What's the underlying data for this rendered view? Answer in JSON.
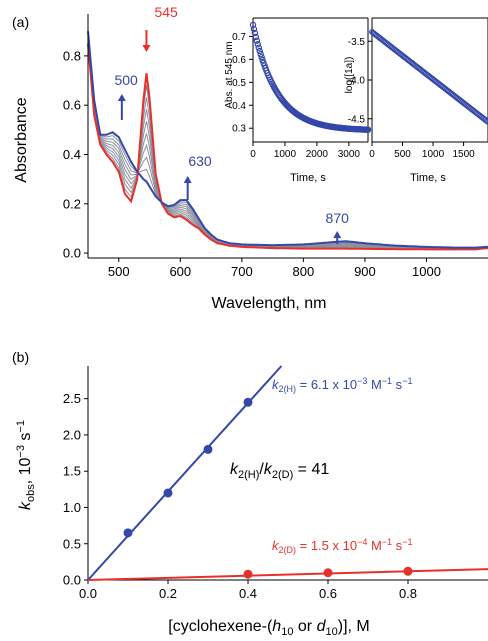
{
  "colors": {
    "blue": "#3547a8",
    "red": "#e8302a",
    "grey": "#8a8f9c",
    "axis": "#000000"
  },
  "chart_data": [
    {
      "panel_label": "(a)",
      "type": "line",
      "xlabel": "Wavelength, nm",
      "ylabel": "Absorbance",
      "xlim": [
        450,
        1100
      ],
      "ylim": [
        -0.02,
        0.97
      ],
      "x_ticks": [
        500,
        600,
        700,
        800,
        900,
        1000
      ],
      "y_ticks": [
        0.0,
        0.2,
        0.4,
        0.6,
        0.8
      ],
      "series": [
        {
          "role": "initial",
          "color": "red",
          "x": [
            450,
            460,
            470,
            480,
            490,
            500,
            510,
            520,
            530,
            540,
            545,
            550,
            560,
            570,
            580,
            590,
            600,
            610,
            620,
            630,
            640,
            650,
            660,
            680,
            700,
            750,
            800,
            850,
            870,
            900,
            950,
            1000,
            1050,
            1080,
            1090,
            1100
          ],
          "y": [
            0.85,
            0.56,
            0.44,
            0.4,
            0.37,
            0.33,
            0.24,
            0.21,
            0.3,
            0.62,
            0.73,
            0.63,
            0.32,
            0.2,
            0.16,
            0.145,
            0.15,
            0.135,
            0.115,
            0.1,
            0.075,
            0.055,
            0.04,
            0.03,
            0.025,
            0.02,
            0.018,
            0.018,
            0.018,
            0.017,
            0.016,
            0.015,
            0.015,
            0.015,
            0.018,
            0.02
          ]
        },
        {
          "role": "final",
          "color": "blue",
          "x": [
            450,
            460,
            470,
            480,
            490,
            500,
            510,
            520,
            530,
            540,
            545,
            550,
            560,
            570,
            580,
            590,
            600,
            610,
            620,
            630,
            640,
            650,
            660,
            680,
            700,
            750,
            800,
            850,
            870,
            900,
            950,
            1000,
            1050,
            1080,
            1090,
            1100
          ],
          "y": [
            0.9,
            0.62,
            0.48,
            0.48,
            0.49,
            0.47,
            0.42,
            0.37,
            0.33,
            0.3,
            0.29,
            0.27,
            0.23,
            0.205,
            0.19,
            0.195,
            0.215,
            0.215,
            0.18,
            0.14,
            0.1,
            0.075,
            0.055,
            0.04,
            0.035,
            0.032,
            0.035,
            0.045,
            0.048,
            0.04,
            0.03,
            0.025,
            0.022,
            0.022,
            0.024,
            0.025
          ]
        }
      ],
      "intermediate_traces": 8,
      "annotations": [
        {
          "text": "545",
          "color": "red",
          "x": 545,
          "direction": "down"
        },
        {
          "text": "500",
          "color": "blue",
          "x": 490,
          "direction": "up"
        },
        {
          "text": "630",
          "color": "blue",
          "x": 612,
          "direction": "up"
        },
        {
          "text": "870",
          "color": "blue",
          "x": 855,
          "direction": "up"
        }
      ]
    },
    {
      "panel_label": "inset-1",
      "type": "scatter",
      "xlabel": "Time, s",
      "ylabel": "Abs. at 545 nm",
      "xlim": [
        0,
        3600
      ],
      "ylim": [
        0.24,
        0.78
      ],
      "x_ticks": [
        0,
        1000,
        2000,
        3000
      ],
      "y_ticks": [
        0.3,
        0.4,
        0.5,
        0.6,
        0.7
      ],
      "decay": {
        "y_inf": 0.29,
        "amplitude": 0.46,
        "k": 0.00135
      }
    },
    {
      "panel_label": "inset-2",
      "type": "scatter",
      "xlabel": "Time, s",
      "ylabel": "log([1a])",
      "xlim": [
        0,
        1900
      ],
      "ylim": [
        -4.8,
        -3.2
      ],
      "x_ticks": [
        0,
        500,
        1000,
        1500
      ],
      "y_ticks": [
        -3.5,
        -4.0,
        -4.5
      ],
      "line": {
        "y0": -3.38,
        "slope": -0.000611
      }
    },
    {
      "panel_label": "(b)",
      "type": "scatter",
      "xlabel_parts": {
        "pre": "[cyclohexene-(",
        "h": "h",
        "h_sub": "10",
        "mid": " or ",
        "d": "d",
        "d_sub": "10",
        "post": ")], M"
      },
      "ylabel_parts": {
        "k": "k",
        "sub": "obs",
        "mid": ", 10",
        "sup": "−3",
        "post": " s",
        "sup2": "−1"
      },
      "xlim": [
        0,
        1.0
      ],
      "ylim": [
        0,
        2.95
      ],
      "x_ticks": [
        0.0,
        0.2,
        0.4,
        0.6,
        0.8
      ],
      "y_ticks": [
        0.0,
        0.5,
        1.0,
        1.5,
        2.0,
        2.5
      ],
      "series": [
        {
          "name": "k2(H)",
          "color": "blue",
          "x": [
            0.1,
            0.2,
            0.3,
            0.4
          ],
          "y": [
            0.65,
            1.2,
            1.8,
            2.45
          ],
          "fit_slope": 6.1
        },
        {
          "name": "k2(D)",
          "color": "red",
          "x": [
            0.4,
            0.6,
            0.8
          ],
          "y": [
            0.08,
            0.1,
            0.12
          ],
          "fit_slope": 0.15
        }
      ],
      "labels": {
        "kH": {
          "k": "k",
          "sub": "2(H)",
          "text": " = 6.1 x 10",
          "exp1": "−3",
          "unit1": " M",
          "exp2": "−1",
          "unit2": " s",
          "exp3": "−1"
        },
        "kD": {
          "k": "k",
          "sub": "2(D)",
          "text": " = 1.5 x 10",
          "exp1": "−4",
          "unit1": " M",
          "exp2": "−1",
          "unit2": " s",
          "exp3": "−1"
        },
        "ratio": {
          "k1": "k",
          "sub1": "2(H)",
          "slash": "/",
          "k2": "k",
          "sub2": "2(D)",
          "text": " = 41"
        }
      }
    }
  ]
}
